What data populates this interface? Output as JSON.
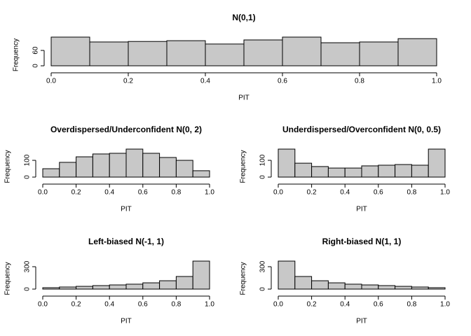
{
  "chart_data": [
    {
      "type": "histogram",
      "title": "N(0,1)",
      "xlabel": "PIT",
      "ylabel": "Frequency",
      "color": "#c8c8c8",
      "bins": [
        0,
        0.1,
        0.2,
        0.3,
        0.4,
        0.5,
        0.6,
        0.7,
        0.8,
        0.9,
        1.0
      ],
      "counts": [
        112,
        93,
        95,
        98,
        85,
        101,
        112,
        90,
        93,
        106
      ],
      "xlim": [
        0,
        1
      ],
      "ylim": [
        0,
        112
      ],
      "xticks": [
        {
          "value": 0,
          "label": "0.0"
        },
        {
          "value": 0.2,
          "label": "0.2"
        },
        {
          "value": 0.4,
          "label": "0.4"
        },
        {
          "value": 0.6,
          "label": "0.6"
        },
        {
          "value": 0.8,
          "label": "0.8"
        },
        {
          "value": 1,
          "label": "1.0"
        }
      ],
      "yticks": [
        0,
        60
      ]
    },
    {
      "type": "histogram",
      "title": "Overdispersed/Underconfident N(0, 2)",
      "xlabel": "PIT",
      "ylabel": "Frequency",
      "color": "#c8c8c8",
      "bins": [
        0,
        0.1,
        0.2,
        0.3,
        0.4,
        0.5,
        0.6,
        0.7,
        0.8,
        0.9,
        1.0
      ],
      "counts": [
        50,
        88,
        121,
        138,
        142,
        167,
        142,
        117,
        100,
        38
      ],
      "xlim": [
        0,
        1
      ],
      "ylim": [
        0,
        167
      ],
      "xticks": [
        {
          "value": 0,
          "label": "0.0"
        },
        {
          "value": 0.2,
          "label": "0.2"
        },
        {
          "value": 0.4,
          "label": "0.4"
        },
        {
          "value": 0.6,
          "label": "0.6"
        },
        {
          "value": 0.8,
          "label": "0.8"
        },
        {
          "value": 1,
          "label": "1.0"
        }
      ],
      "yticks": [
        0,
        100
      ]
    },
    {
      "type": "histogram",
      "title": "Underdispersed/Overconfident N(0, 0.5)",
      "xlabel": "PIT",
      "ylabel": "Frequency",
      "color": "#c8c8c8",
      "bins": [
        0,
        0.1,
        0.2,
        0.3,
        0.4,
        0.5,
        0.6,
        0.7,
        0.8,
        0.9,
        1.0
      ],
      "counts": [
        167,
        83,
        63,
        54,
        54,
        67,
        71,
        75,
        71,
        167
      ],
      "xlim": [
        0,
        1
      ],
      "ylim": [
        0,
        167
      ],
      "xticks": [
        {
          "value": 0,
          "label": "0.0"
        },
        {
          "value": 0.2,
          "label": "0.2"
        },
        {
          "value": 0.4,
          "label": "0.4"
        },
        {
          "value": 0.6,
          "label": "0.6"
        },
        {
          "value": 0.8,
          "label": "0.8"
        },
        {
          "value": 1,
          "label": "1.0"
        }
      ],
      "yticks": [
        0,
        100
      ]
    },
    {
      "type": "histogram",
      "title": "Left-biased N(-1, 1)",
      "xlabel": "PIT",
      "ylabel": "Frequency",
      "color": "#c8c8c8",
      "bins": [
        0,
        0.1,
        0.2,
        0.3,
        0.4,
        0.5,
        0.6,
        0.7,
        0.8,
        0.9,
        1.0
      ],
      "counts": [
        19,
        28,
        37,
        47,
        56,
        66,
        84,
        112,
        169,
        375
      ],
      "xlim": [
        0,
        1
      ],
      "ylim": [
        0,
        375
      ],
      "xticks": [
        {
          "value": 0,
          "label": "0.0"
        },
        {
          "value": 0.2,
          "label": "0.2"
        },
        {
          "value": 0.4,
          "label": "0.4"
        },
        {
          "value": 0.6,
          "label": "0.6"
        },
        {
          "value": 0.8,
          "label": "0.8"
        },
        {
          "value": 1,
          "label": "1.0"
        }
      ],
      "yticks": [
        0,
        300
      ]
    },
    {
      "type": "histogram",
      "title": "Right-biased N(1, 1)",
      "xlabel": "PIT",
      "ylabel": "Frequency",
      "color": "#c8c8c8",
      "bins": [
        0,
        0.1,
        0.2,
        0.3,
        0.4,
        0.5,
        0.6,
        0.7,
        0.8,
        0.9,
        1.0
      ],
      "counts": [
        375,
        169,
        112,
        84,
        66,
        56,
        47,
        37,
        28,
        19
      ],
      "xlim": [
        0,
        1
      ],
      "ylim": [
        0,
        375
      ],
      "xticks": [
        {
          "value": 0,
          "label": "0.0"
        },
        {
          "value": 0.2,
          "label": "0.2"
        },
        {
          "value": 0.4,
          "label": "0.4"
        },
        {
          "value": 0.6,
          "label": "0.6"
        },
        {
          "value": 0.8,
          "label": "0.8"
        },
        {
          "value": 1,
          "label": "1.0"
        }
      ],
      "yticks": [
        0,
        300
      ]
    }
  ]
}
